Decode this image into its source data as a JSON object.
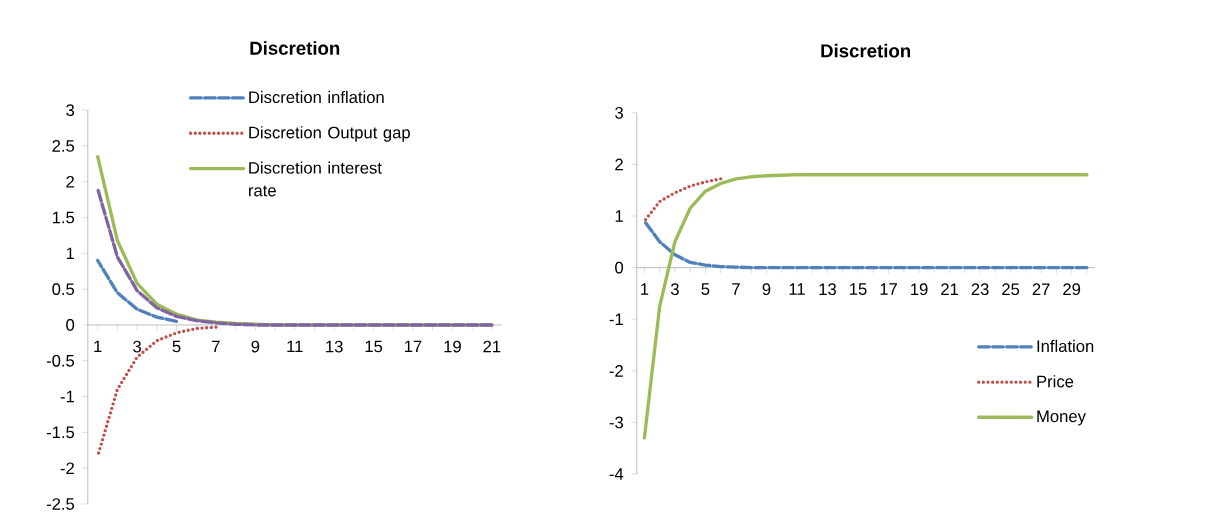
{
  "chart_data": [
    {
      "type": "line",
      "title": "Discretion",
      "categories": [
        "1",
        null,
        "3",
        null,
        "5",
        null,
        "7",
        null,
        "9",
        null,
        "11",
        null,
        "13",
        null,
        "15",
        null,
        "17",
        null,
        "19",
        null,
        "21"
      ],
      "series": [
        {
          "name": "Discretion inflation",
          "color": "#4f81bd",
          "line_style": "dashed",
          "values": [
            0.9,
            0.45,
            0.22,
            0.11,
            0.05,
            null,
            null,
            null,
            null,
            null,
            null,
            null,
            null,
            null,
            null,
            null,
            null,
            null,
            null,
            null,
            null
          ]
        },
        {
          "name": "Discretion Output gap",
          "color": "#c0504d",
          "line_style": "dotted",
          "values": [
            -1.83,
            -0.9,
            -0.45,
            -0.22,
            -0.11,
            -0.05,
            -0.03,
            null,
            null,
            null,
            null,
            null,
            null,
            null,
            null,
            null,
            null,
            null,
            null,
            null,
            null
          ]
        },
        {
          "name": "Discretion interest rate",
          "color": "#9bbb59",
          "line_style": "solid",
          "values": [
            2.35,
            1.18,
            0.58,
            0.29,
            0.15,
            0.07,
            0.04,
            0.02,
            0.01,
            0,
            0,
            0,
            0,
            0,
            0,
            0,
            0,
            0,
            0,
            0,
            0
          ]
        },
        {
          "color": "#8064a2",
          "line_style": "dashed",
          "values": [
            1.9,
            0.95,
            0.48,
            0.24,
            0.12,
            0.06,
            0.03,
            0.01,
            0,
            0,
            0,
            0,
            0,
            0,
            0,
            0,
            0,
            0,
            0,
            0,
            0
          ]
        }
      ],
      "ylim": [
        -2.5,
        3
      ],
      "yticks": [
        -2.5,
        -2,
        -1.5,
        -1,
        -0.5,
        0,
        0.5,
        1,
        1.5,
        2,
        2.5,
        3
      ],
      "legend": "top right",
      "grid": false,
      "marker": "none"
    },
    {
      "type": "line",
      "title": "Discretion",
      "categories": [
        "1",
        null,
        "3",
        null,
        "5",
        null,
        "7",
        null,
        "9",
        null,
        "11",
        null,
        "13",
        null,
        "15",
        null,
        "17",
        null,
        "19",
        null,
        "21",
        null,
        "23",
        null,
        "25",
        null,
        "27",
        null,
        "29",
        null
      ],
      "series": [
        {
          "name": "Inflation",
          "color": "#4f81bd",
          "line_style": "dashed",
          "values": [
            0.9,
            0.5,
            0.25,
            0.1,
            0.05,
            0.02,
            0.01,
            0,
            0,
            0,
            0,
            0,
            0,
            0,
            0,
            0,
            0,
            0,
            0,
            0,
            0,
            0,
            0,
            0,
            0,
            0,
            0,
            0,
            0,
            0
          ]
        },
        {
          "name": "Price",
          "color": "#c0504d",
          "line_style": "dotted",
          "values": [
            0.9,
            1.28,
            1.45,
            1.58,
            1.66,
            1.72,
            null,
            null,
            null,
            null,
            null,
            null,
            null,
            null,
            null,
            null,
            null,
            null,
            null,
            null,
            null,
            null,
            null,
            null,
            null,
            null,
            null,
            null,
            null,
            null
          ]
        },
        {
          "name": "Money",
          "color": "#9bbb59",
          "line_style": "solid",
          "values": [
            -3.3,
            -0.75,
            0.5,
            1.15,
            1.48,
            1.63,
            1.72,
            1.76,
            1.78,
            1.79,
            1.8,
            1.8,
            1.8,
            1.8,
            1.8,
            1.8,
            1.8,
            1.8,
            1.8,
            1.8,
            1.8,
            1.8,
            1.8,
            1.8,
            1.8,
            1.8,
            1.8,
            1.8,
            1.8,
            1.8
          ]
        }
      ],
      "ylim": [
        -4,
        3
      ],
      "yticks": [
        -4,
        -3,
        -2,
        -1,
        0,
        1,
        2,
        3
      ],
      "legend": "bottom right",
      "grid": false,
      "marker": "none"
    }
  ]
}
